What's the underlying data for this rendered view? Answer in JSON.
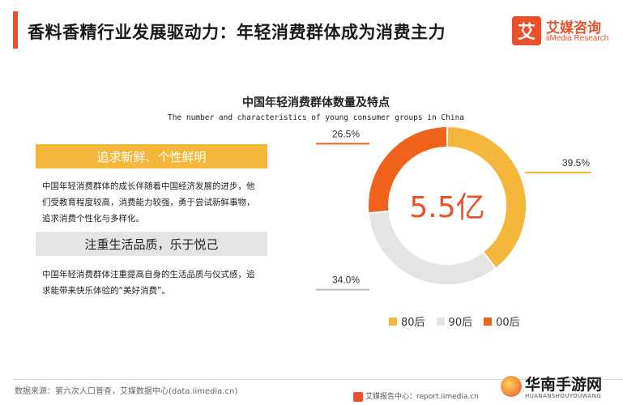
{
  "header": {
    "title": "香料香精行业发展驱动力：年轻消费群体成为消费主力",
    "logo": {
      "mark": "艾",
      "name_cn": "艾媒咨询",
      "name_en": "iiMedia Research"
    }
  },
  "features": [
    {
      "label": "追求新鲜、个性鲜明",
      "lines": [
        "中国年轻消费群体的成长伴随着中国经济发展的进步，他",
        "们受教育程度较高，消费能力较强，勇于尝试新鲜事物，",
        "追求消费个性化与多样化。"
      ]
    },
    {
      "label": "注重生活品质，乐于悦己",
      "lines": [
        "中国年轻消费群体注重提高自身的生活品质与仪式感，追",
        "求能带来快乐体验的“美好消费”。"
      ]
    }
  ],
  "chart_data": {
    "type": "pie",
    "title": "中国年轻消费群体数量及特点",
    "subtitle": "The number and characteristics of young consumer groups in China",
    "center_label": "5.5亿",
    "categories": [
      "80后",
      "90后",
      "00后"
    ],
    "values": [
      39.5,
      34.0,
      26.5
    ],
    "value_labels": [
      "39.5%",
      "34.0%",
      "26.5%"
    ],
    "colors": [
      "#f5b73b",
      "#e4e4e4",
      "#f0611c"
    ],
    "legend_position": "bottom"
  },
  "footer": {
    "source": "数据来源：第六次人口普查，艾媒数据中心(data.iimedia.cn)",
    "report_center": "艾媒报告中心：report.iimedia.cn",
    "watermark_cn": "华南手游网",
    "watermark_en": "HUANANSHOUYOUWANG"
  },
  "colors": {
    "accent": "#e8512a",
    "center_text": "#e8512a"
  }
}
